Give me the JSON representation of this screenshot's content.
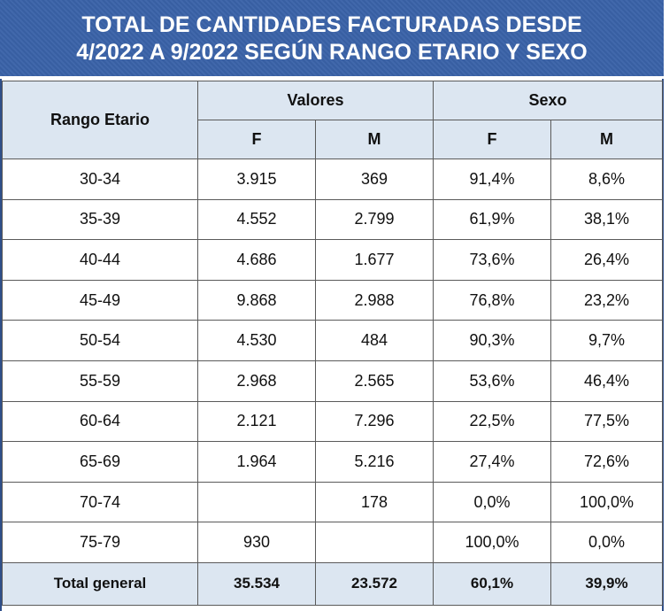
{
  "title": {
    "line1": "TOTAL DE CANTIDADES FACTURADAS DESDE",
    "line2": "4/2022 A 9/2022  SEGÚN RANGO ETARIO Y SEXO"
  },
  "headers": {
    "rango": "Rango Etario",
    "valores": "Valores",
    "sexo": "Sexo",
    "f1": "F",
    "m1": "M",
    "f2": "F",
    "m2": "M"
  },
  "rows": [
    {
      "rango": "30-34",
      "vf": "3.915",
      "vm": "369",
      "sf": "91,4%",
      "sm": "8,6%"
    },
    {
      "rango": "35-39",
      "vf": "4.552",
      "vm": "2.799",
      "sf": "61,9%",
      "sm": "38,1%"
    },
    {
      "rango": "40-44",
      "vf": "4.686",
      "vm": "1.677",
      "sf": "73,6%",
      "sm": "26,4%"
    },
    {
      "rango": "45-49",
      "vf": "9.868",
      "vm": "2.988",
      "sf": "76,8%",
      "sm": "23,2%"
    },
    {
      "rango": "50-54",
      "vf": "4.530",
      "vm": "484",
      "sf": "90,3%",
      "sm": "9,7%"
    },
    {
      "rango": "55-59",
      "vf": "2.968",
      "vm": "2.565",
      "sf": "53,6%",
      "sm": "46,4%"
    },
    {
      "rango": "60-64",
      "vf": "2.121",
      "vm": "7.296",
      "sf": "22,5%",
      "sm": "77,5%"
    },
    {
      "rango": "65-69",
      "vf": "1.964",
      "vm": "5.216",
      "sf": "27,4%",
      "sm": "72,6%"
    },
    {
      "rango": "70-74",
      "vf": "",
      "vm": "178",
      "sf": "0,0%",
      "sm": "100,0%"
    },
    {
      "rango": "75-79",
      "vf": "930",
      "vm": "",
      "sf": "100,0%",
      "sm": "0,0%"
    }
  ],
  "total": {
    "rango": "Total general",
    "vf": "35.534",
    "vm": "23.572",
    "sf": "60,1%",
    "sm": "39,9%"
  }
}
